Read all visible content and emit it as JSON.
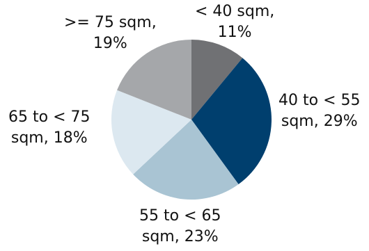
{
  "chart_data": {
    "type": "pie",
    "title": "",
    "slices": [
      {
        "name": "< 40 sqm",
        "value": 11,
        "color": "#707174"
      },
      {
        "name": "40 to < 55 sqm",
        "value": 29,
        "color": "#003f6e"
      },
      {
        "name": "55 to < 65 sqm",
        "value": 23,
        "color": "#a9c4d3"
      },
      {
        "name": "65 to < 75 sqm",
        "value": 18,
        "color": "#dce8f0"
      },
      {
        "name": ">= 75 sqm",
        "value": 19,
        "color": "#a5a7aa"
      }
    ],
    "labels": [
      {
        "line1": "< 40 sqm,",
        "line2": "11%"
      },
      {
        "line1": "40 to < 55",
        "line2": "sqm, 29%"
      },
      {
        "line1": "55 to < 65",
        "line2": "sqm, 23%"
      },
      {
        "line1": "65 to < 75",
        "line2": "sqm, 18%"
      },
      {
        "line1": ">= 75 sqm,",
        "line2": "19%"
      }
    ],
    "start": "12 o'clock",
    "direction": "clockwise",
    "legend": "none"
  }
}
